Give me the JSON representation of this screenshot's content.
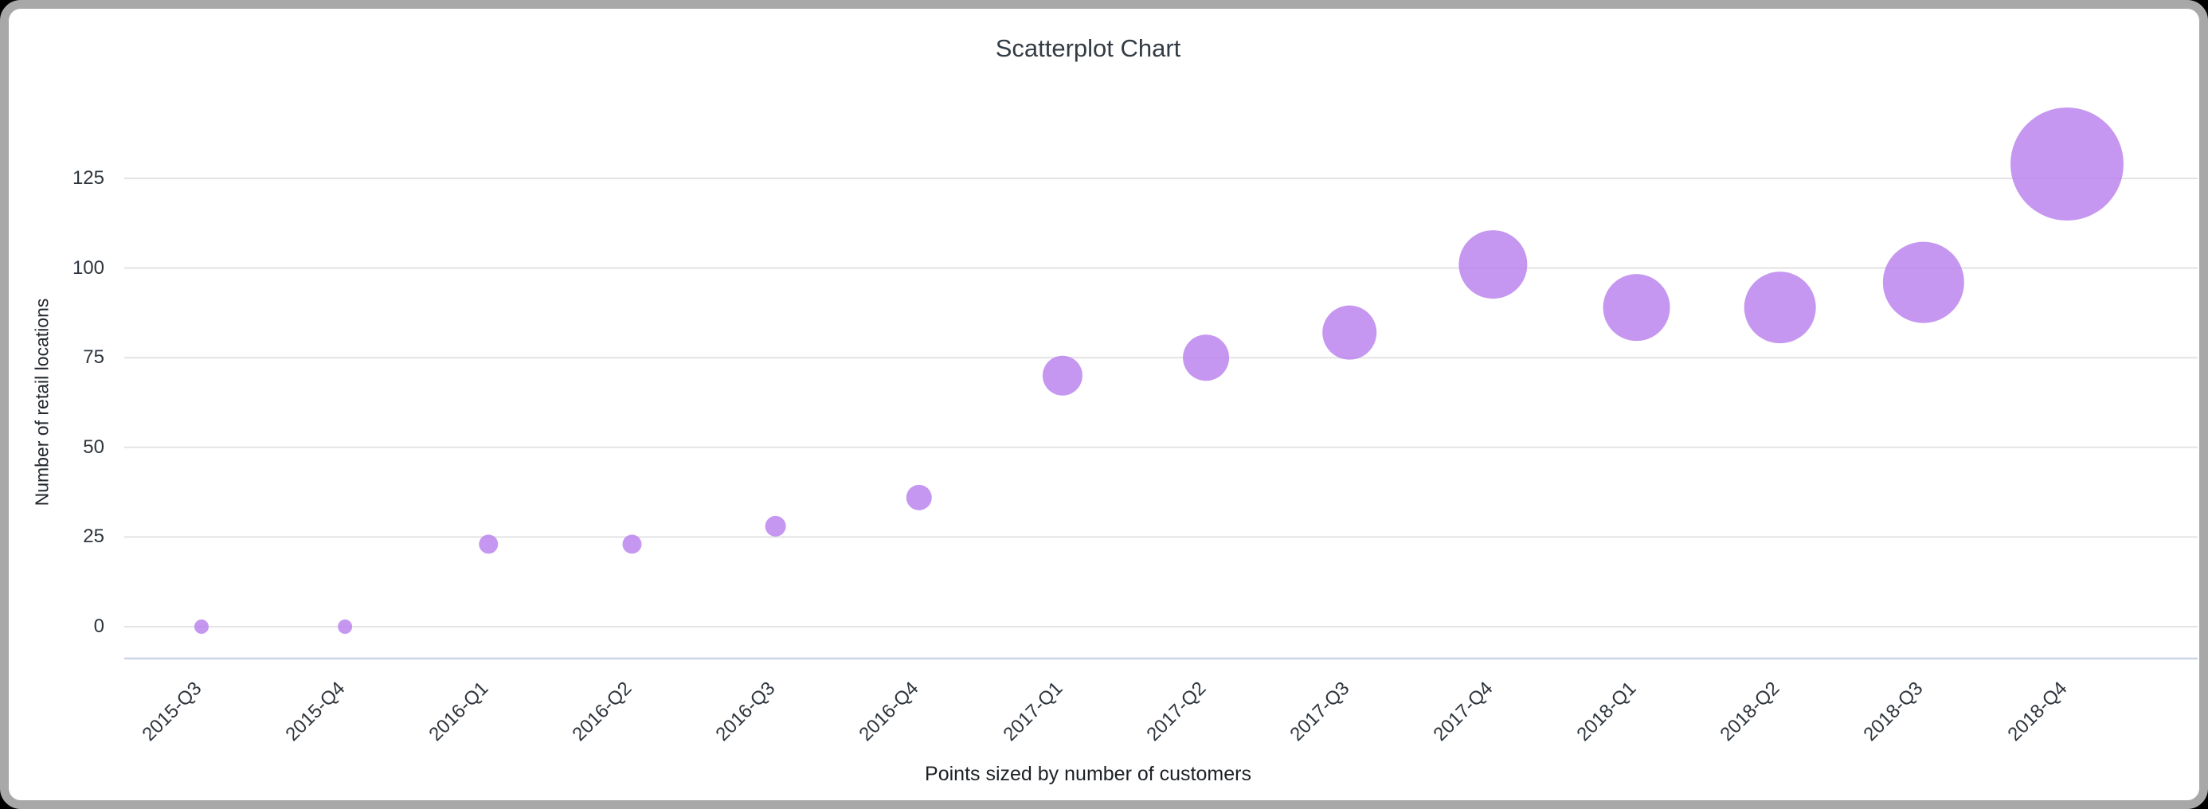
{
  "page": {
    "background_color": "#000000"
  },
  "card": {
    "background_color": "#ffffff",
    "border_color": "#a8a8a8"
  },
  "chart_data": {
    "type": "scatter",
    "title": "Scatterplot Chart",
    "ylabel": "Number of retail locations",
    "caption": "Points sized by number of customers",
    "categories": [
      "2015-Q3",
      "2015-Q4",
      "2016-Q1",
      "2016-Q2",
      "2016-Q3",
      "2016-Q4",
      "2017-Q1",
      "2017-Q2",
      "2017-Q3",
      "2017-Q4",
      "2018-Q1",
      "2018-Q2",
      "2018-Q3",
      "2018-Q4"
    ],
    "series": [
      {
        "name": "Number of retail locations",
        "values": [
          0,
          0,
          23,
          23,
          28,
          36,
          70,
          75,
          82,
          101,
          89,
          89,
          96,
          129
        ]
      }
    ],
    "point_radius_px": [
      9,
      9,
      12,
      12,
      13,
      16,
      25,
      29,
      34,
      43,
      42,
      45,
      51,
      71
    ],
    "size_encoding": "number of customers",
    "yticks": [
      0,
      25,
      50,
      75,
      100,
      125
    ],
    "ylim": [
      0,
      140
    ],
    "grid": true,
    "legend_position": "none",
    "point_color": "#b87dec",
    "point_opacity": 0.8,
    "gridline_color": "#e3e3e3",
    "axisline_color": "#ccd3e6",
    "text_color": "#2e353c"
  }
}
